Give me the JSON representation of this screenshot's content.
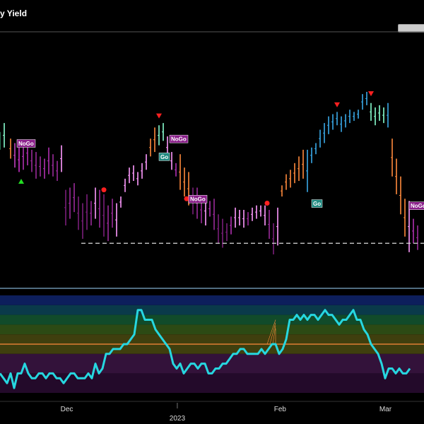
{
  "chart_data": {
    "type": "bar",
    "title": "y Yield",
    "price_bars": [
      [
        0,
        3.72,
        3.8,
        "#2f8f6a"
      ],
      [
        2,
        3.73,
        3.84,
        "#88ffd0"
      ],
      [
        5,
        3.68,
        3.77,
        "#ff8a3c"
      ],
      [
        7,
        3.64,
        3.75,
        "#c040c0"
      ],
      [
        9,
        3.62,
        3.73,
        "#cc2fcc"
      ],
      [
        11,
        3.63,
        3.75,
        "#b12fb1"
      ],
      [
        13,
        3.65,
        3.76,
        "#b12fb1"
      ],
      [
        15,
        3.62,
        3.72,
        "#9a2a9a"
      ],
      [
        17,
        3.59,
        3.71,
        "#9a2a9a"
      ],
      [
        19,
        3.6,
        3.69,
        "#9a2a9a"
      ],
      [
        21,
        3.59,
        3.68,
        "#b12fb1"
      ],
      [
        23,
        3.61,
        3.73,
        "#b12fb1"
      ],
      [
        25,
        3.6,
        3.7,
        "#9a2a9a"
      ],
      [
        27,
        3.58,
        3.67,
        "#9a2a9a"
      ],
      [
        29,
        3.62,
        3.74,
        "#ff9aff"
      ],
      [
        31,
        3.38,
        3.54,
        "#7a1f7a"
      ],
      [
        33,
        3.41,
        3.55,
        "#9a2a9a"
      ],
      [
        35,
        3.44,
        3.57,
        "#9a2a9a"
      ],
      [
        37,
        3.36,
        3.51,
        "#7a1f7a"
      ],
      [
        39,
        3.32,
        3.48,
        "#7a1f7a"
      ],
      [
        41,
        3.36,
        3.52,
        "#7a1f7a"
      ],
      [
        43,
        3.38,
        3.49,
        "#9a2a9a"
      ],
      [
        45,
        3.41,
        3.55,
        "#ff9aff"
      ],
      [
        47,
        3.37,
        3.54,
        "#9a2a9a"
      ],
      [
        49,
        3.33,
        3.52,
        "#7a1f7a"
      ],
      [
        51,
        3.31,
        3.47,
        "#9a2a9a"
      ],
      [
        53,
        3.37,
        3.5,
        "#9a2a9a"
      ],
      [
        55,
        3.33,
        3.48,
        "#ff9aff"
      ],
      [
        57,
        3.46,
        3.51,
        "#ff9aff"
      ],
      [
        59,
        3.53,
        3.59,
        "#ff9aff"
      ],
      [
        61,
        3.57,
        3.64,
        "#ff9aff"
      ],
      [
        63,
        3.58,
        3.65,
        "#ff9aff"
      ],
      [
        65,
        3.56,
        3.62,
        "#ff9aff"
      ],
      [
        67,
        3.59,
        3.66,
        "#ff9aff"
      ],
      [
        69,
        3.63,
        3.7,
        "#ff9aff"
      ],
      [
        71,
        3.69,
        3.77,
        "#ff8a3c"
      ],
      [
        73,
        3.71,
        3.82,
        "#ff8a3c"
      ],
      [
        75,
        3.74,
        3.83,
        "#88ffd0"
      ],
      [
        77,
        3.76,
        3.84,
        "#88ffd0"
      ],
      [
        79,
        3.68,
        3.78,
        "#ff9aff"
      ],
      [
        81,
        3.63,
        3.71,
        "#ff9aff"
      ],
      [
        83,
        3.6,
        3.66,
        "#b12fb1"
      ],
      [
        85,
        3.54,
        3.7,
        "#ff8a3c"
      ],
      [
        87,
        3.51,
        3.64,
        "#ff8a3c"
      ],
      [
        89,
        3.47,
        3.62,
        "#ff8a3c"
      ],
      [
        91,
        3.43,
        3.55,
        "#7a1f7a"
      ],
      [
        93,
        3.41,
        3.55,
        "#9a2a9a"
      ],
      [
        95,
        3.39,
        3.51,
        "#9a2a9a"
      ],
      [
        97,
        3.38,
        3.51,
        "#ff9aff"
      ],
      [
        99,
        3.42,
        3.49,
        "#b12fb1"
      ],
      [
        101,
        3.36,
        3.5,
        "#9a2a9a"
      ],
      [
        103,
        3.3,
        3.43,
        "#7a1f7a"
      ],
      [
        105,
        3.28,
        3.41,
        "#7a1f7a"
      ],
      [
        107,
        3.31,
        3.39,
        "#7a1f7a"
      ],
      [
        109,
        3.34,
        3.42,
        "#b12fb1"
      ],
      [
        111,
        3.37,
        3.46,
        "#ff9aff"
      ],
      [
        113,
        3.38,
        3.45,
        "#ff9aff"
      ],
      [
        115,
        3.37,
        3.45,
        "#ff9aff"
      ],
      [
        117,
        3.38,
        3.44,
        "#9a2a9a"
      ],
      [
        119,
        3.4,
        3.46,
        "#ff9aff"
      ],
      [
        121,
        3.41,
        3.47,
        "#ff9aff"
      ],
      [
        123,
        3.42,
        3.47,
        "#ff9aff"
      ],
      [
        125,
        3.38,
        3.47,
        "#ff9aff"
      ],
      [
        127,
        3.32,
        3.45,
        "#9a2a9a"
      ],
      [
        129,
        3.25,
        3.39,
        "#7a1f7a"
      ],
      [
        131,
        3.29,
        3.46,
        "#ff9aff"
      ],
      [
        133,
        3.51,
        3.56,
        "#ff8a3c"
      ],
      [
        135,
        3.54,
        3.61,
        "#ff8a3c"
      ],
      [
        137,
        3.55,
        3.63,
        "#ff8a3c"
      ],
      [
        139,
        3.57,
        3.66,
        "#ff8a3c"
      ],
      [
        141,
        3.58,
        3.69,
        "#ff8a3c"
      ],
      [
        143,
        3.59,
        3.72,
        "#ff8a3c"
      ],
      [
        145,
        3.53,
        3.72,
        "#3aa9e8"
      ],
      [
        147,
        3.66,
        3.73,
        "#3aa9e8"
      ],
      [
        149,
        3.7,
        3.75,
        "#3aa9e8"
      ],
      [
        151,
        3.73,
        3.81,
        "#3aa9e8"
      ],
      [
        153,
        3.75,
        3.84,
        "#3aa9e8"
      ],
      [
        155,
        3.79,
        3.87,
        "#3aa9e8"
      ],
      [
        157,
        3.81,
        3.88,
        "#3aa9e8"
      ],
      [
        159,
        3.83,
        3.89,
        "#3aa9e8"
      ],
      [
        161,
        3.8,
        3.87,
        "#3aa9e8"
      ],
      [
        163,
        3.82,
        3.88,
        "#3aa9e8"
      ],
      [
        165,
        3.84,
        3.9,
        "#3aa9e8"
      ],
      [
        167,
        3.85,
        3.89,
        "#3aa9e8"
      ],
      [
        169,
        3.86,
        3.9,
        "#3aa9e8"
      ],
      [
        171,
        3.9,
        3.97,
        "#3aa9e8"
      ],
      [
        173,
        3.92,
        3.98,
        "#3aa9e8"
      ],
      [
        175,
        3.85,
        3.93,
        "#88ffd0"
      ],
      [
        177,
        3.83,
        3.91,
        "#88ffd0"
      ],
      [
        179,
        3.85,
        3.92,
        "#88ffd0"
      ],
      [
        181,
        3.84,
        3.91,
        "#88ffd0"
      ],
      [
        183,
        3.82,
        3.93,
        "#3aa9e8"
      ],
      [
        185,
        3.6,
        3.77,
        "#ff8a3c"
      ],
      [
        187,
        3.52,
        3.68,
        "#ff8a3c"
      ],
      [
        189,
        3.43,
        3.6,
        "#ff8a3c"
      ],
      [
        191,
        3.33,
        3.5,
        "#ff8a3c"
      ],
      [
        193,
        3.26,
        3.49,
        "#ff9aff"
      ],
      [
        195,
        3.3,
        3.41,
        "#b12fb1"
      ],
      [
        197,
        3.27,
        3.38,
        "#9a2a9a"
      ]
    ],
    "support_level": 3.3,
    "markers": [
      {
        "kind": "down-triangle",
        "i": 75,
        "v": 3.87,
        "color": "#ff2020"
      },
      {
        "kind": "down-triangle",
        "i": 159,
        "v": 3.92,
        "color": "#ff2020"
      },
      {
        "kind": "down-triangle",
        "i": 175,
        "v": 3.97,
        "color": "#ff2020"
      },
      {
        "kind": "up-triangle",
        "i": 10,
        "v": 3.58,
        "color": "#22dd22"
      },
      {
        "kind": "dot",
        "i": 49,
        "v": 3.54,
        "color": "#ff2020"
      },
      {
        "kind": "dot",
        "i": 88,
        "v": 3.5,
        "color": "#ff2020"
      },
      {
        "kind": "dot",
        "i": 126,
        "v": 3.48,
        "color": "#ff2020"
      }
    ],
    "labels": [
      {
        "text": "NoGo",
        "i": 8,
        "v": 3.75,
        "bg": "#8a1f8a"
      },
      {
        "text": "NoGo",
        "i": 80,
        "v": 3.77,
        "bg": "#8a1f8a"
      },
      {
        "text": "Go",
        "i": 75,
        "v": 3.69,
        "bg": "#1f8a80"
      },
      {
        "text": "NoGo",
        "i": 89,
        "v": 3.5,
        "bg": "#8a1f8a"
      },
      {
        "text": "Go",
        "i": 147,
        "v": 3.48,
        "bg": "#1f8a80"
      },
      {
        "text": "NoGo",
        "i": 193,
        "v": 3.47,
        "bg": "#8a1f8a"
      }
    ],
    "oscillator": [
      2,
      1.5,
      1,
      2,
      0.5,
      2,
      2,
      3,
      2,
      1.5,
      1.5,
      2,
      2,
      1.5,
      2,
      2,
      1.5,
      1.5,
      1,
      1.5,
      2,
      2,
      1.5,
      1.5,
      1.5,
      2,
      1.5,
      3,
      2,
      2.5,
      4,
      4,
      4.5,
      4.5,
      4.5,
      5,
      5,
      5.5,
      6,
      8.5,
      8.5,
      7.5,
      7.5,
      7.5,
      6.5,
      6,
      5.5,
      5,
      4.5,
      3,
      2.5,
      3,
      2,
      2.5,
      3,
      3,
      2.5,
      3,
      3,
      2,
      2,
      2.5,
      2.5,
      3,
      3,
      3.5,
      4,
      4,
      4.5,
      4.5,
      4,
      4,
      4,
      4,
      4.5,
      4,
      4.5,
      5,
      5,
      4,
      4.5,
      5.5,
      7.5,
      7.5,
      8,
      7.5,
      8,
      7.5,
      8,
      8,
      7.5,
      8,
      8.5,
      8,
      8,
      7.5,
      7,
      7.5,
      7.5,
      8,
      8.5,
      7.5,
      7.5,
      6.5,
      6,
      5,
      4.5,
      4,
      3,
      1.5,
      2.5,
      2.5,
      2,
      2.5,
      2,
      2,
      2.5
    ],
    "osc_bands": [
      {
        "lo": 9,
        "hi": 10,
        "color": "#0d1f5c"
      },
      {
        "lo": 8,
        "hi": 9,
        "color": "#0a3a4a"
      },
      {
        "lo": 7,
        "hi": 8,
        "color": "#114b2a"
      },
      {
        "lo": 6,
        "hi": 7,
        "color": "#2c4a14"
      },
      {
        "lo": 4,
        "hi": 6,
        "color": "#3f3f0e"
      },
      {
        "lo": 2,
        "hi": 4,
        "color": "#33123a"
      },
      {
        "lo": 0,
        "hi": 2,
        "color": "#230a2a"
      }
    ],
    "osc_zero": 5,
    "x_ticks": [
      {
        "text": "Dec",
        "i": 52
      },
      {
        "text": "2023",
        "i": 138,
        "row": 2
      },
      {
        "text": "Feb",
        "i": 218
      },
      {
        "text": "Mar",
        "i": 300
      }
    ],
    "osc_tick_marks": [
      128,
      221
    ]
  }
}
